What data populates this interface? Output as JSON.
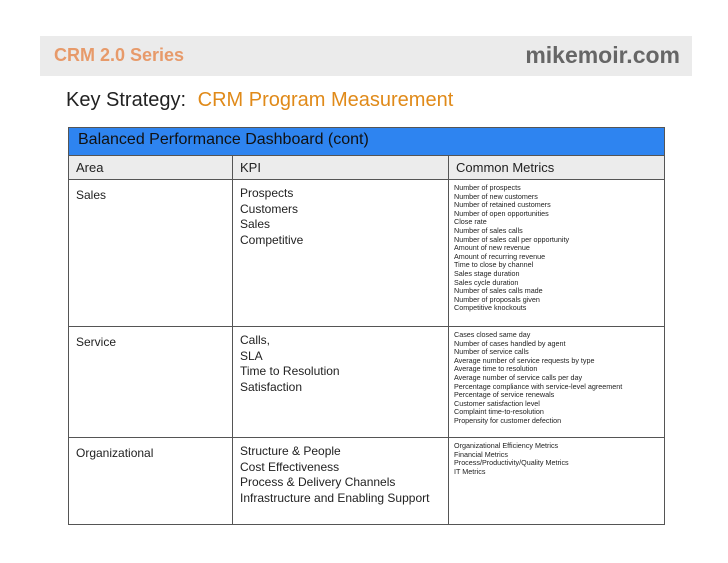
{
  "header": {
    "series_title": "CRM 2.0 Series",
    "site": "mikemoir.com"
  },
  "strategy": {
    "label": "Key Strategy:",
    "value": "CRM Program Measurement"
  },
  "dashboard": {
    "title": "Balanced Performance Dashboard (cont)",
    "columns": [
      "Area",
      "KPI",
      "Common Metrics"
    ],
    "rows": [
      {
        "area": "Sales",
        "kpis": [
          "Prospects",
          "Customers",
          "Sales",
          "Competitive"
        ],
        "metrics": [
          "Number of prospects",
          "Number of new customers",
          "Number of retained customers",
          "Number of open opportunities",
          "Close rate",
          "Number of sales calls",
          "Number of sales call per opportunity",
          "Amount of new revenue",
          "Amount of recurring revenue",
          "Time to close by channel",
          "Sales stage duration",
          "Sales cycle duration",
          "Number of sales calls made",
          "Number of proposals given",
          "Competitive knockouts"
        ]
      },
      {
        "area": "Service",
        "kpis": [
          "Calls,",
          "SLA",
          "Time to Resolution",
          "Satisfaction"
        ],
        "metrics": [
          "Cases closed same day",
          "Number of cases handled by agent",
          "Number of service calls",
          "Average number of service requests by type",
          "Average time to resolution",
          "Average number of service calls per day",
          "Percentage compliance with service-level agreement",
          "Percentage of service renewals",
          "Customer satisfaction level",
          "Complaint time-to-resolution",
          "Propensity for customer defection"
        ]
      },
      {
        "area": "Organizational",
        "kpis": [
          "Structure & People",
          "Cost Effectiveness",
          "Process & Delivery Channels",
          "Infrastructure and Enabling Support"
        ],
        "metrics": [
          "Organizational Efficiency Metrics",
          "Financial Metrics",
          "Process/Productivity/Quality Metrics",
          "IT Metrics"
        ]
      }
    ]
  },
  "colors": {
    "title_bar": "#2e84f0",
    "series_accent": "#e79a6a",
    "strategy_accent": "#e08a19",
    "header_bg": "#ebebeb"
  }
}
